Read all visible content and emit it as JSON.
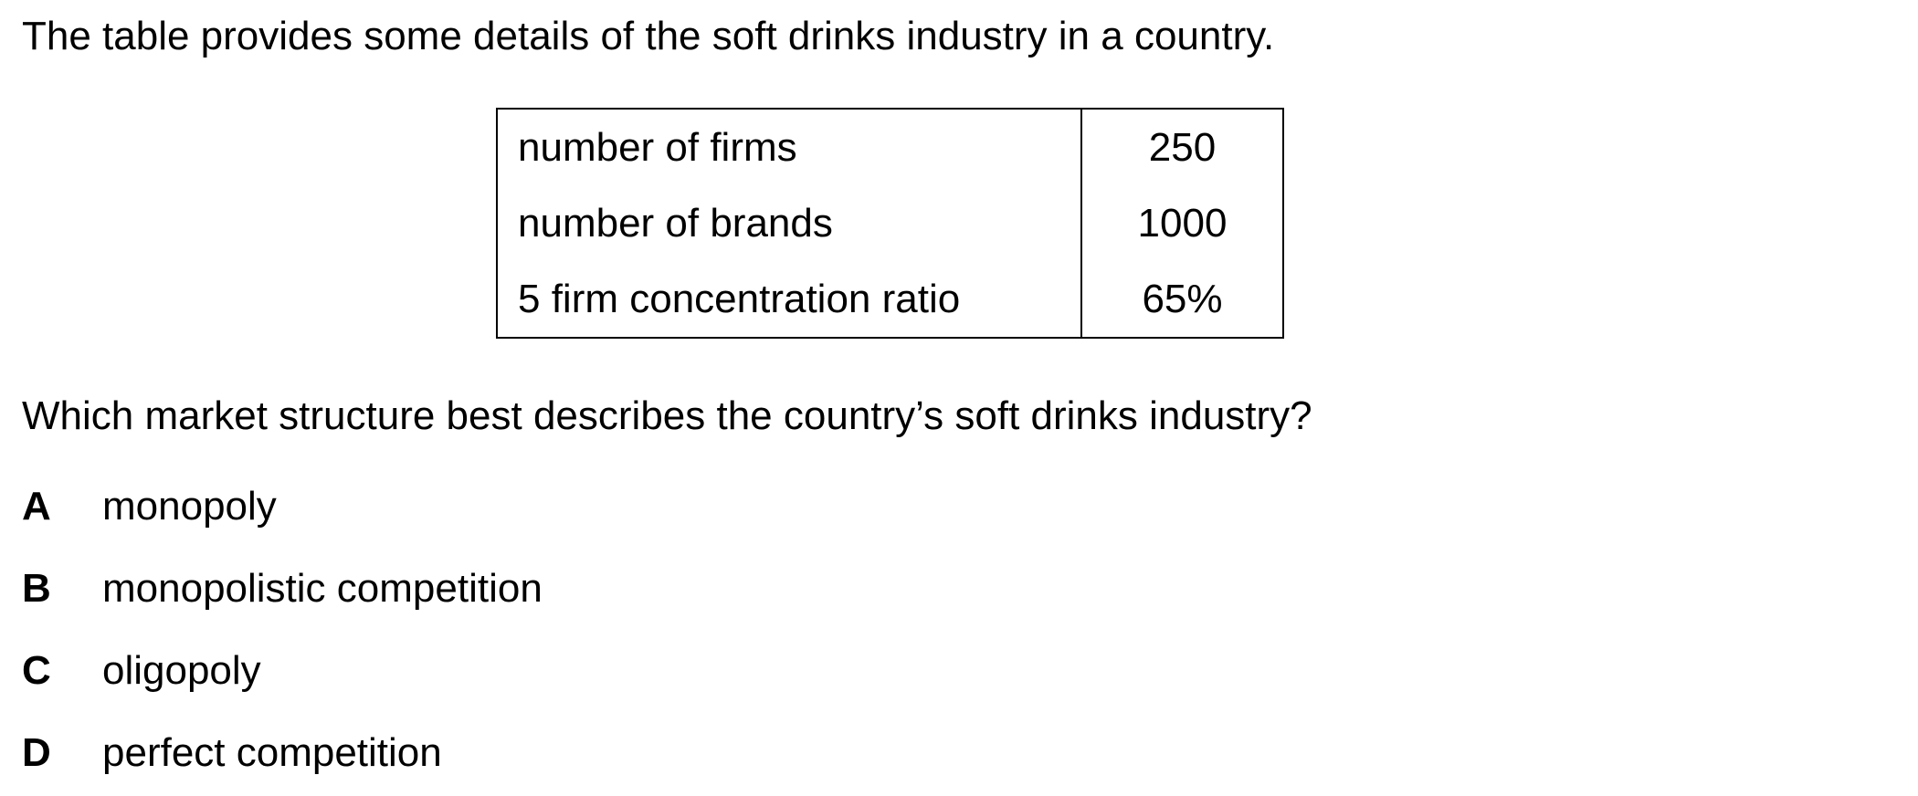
{
  "intro": "The table provides some details of the soft drinks industry in a country.",
  "table": {
    "rows": [
      {
        "label": "number of firms",
        "value": "250"
      },
      {
        "label": "number of brands",
        "value": "1000"
      },
      {
        "label": "5 firm concentration ratio",
        "value": "65%"
      }
    ]
  },
  "question": "Which market structure best describes the country’s soft drinks industry?",
  "options": [
    {
      "letter": "A",
      "text": "monopoly"
    },
    {
      "letter": "B",
      "text": "monopolistic competition"
    },
    {
      "letter": "C",
      "text": "oligopoly"
    },
    {
      "letter": "D",
      "text": "perfect competition"
    }
  ]
}
